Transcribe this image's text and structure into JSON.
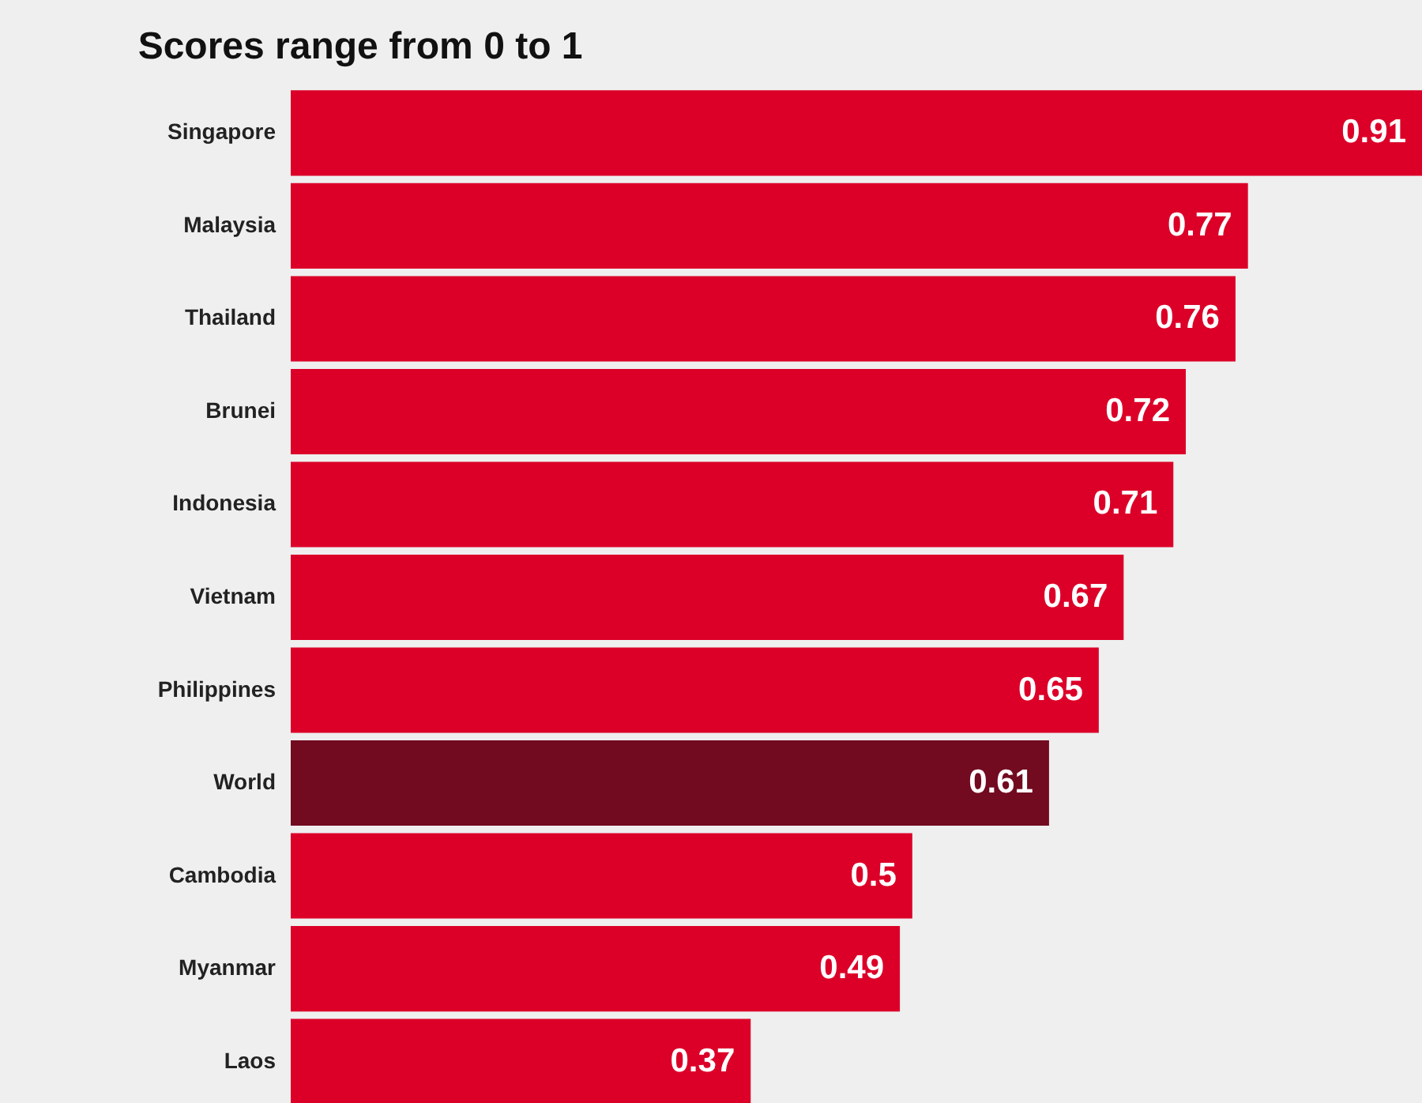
{
  "chart_data": {
    "type": "bar",
    "orientation": "horizontal",
    "title": "Scores range from 0 to 1",
    "categories": [
      "Singapore",
      "Malaysia",
      "Thailand",
      "Brunei",
      "Indonesia",
      "Vietnam",
      "Philippines",
      "World",
      "Cambodia",
      "Myanmar",
      "Laos"
    ],
    "values": [
      0.91,
      0.77,
      0.76,
      0.72,
      0.71,
      0.67,
      0.65,
      0.61,
      0.5,
      0.49,
      0.37
    ],
    "colors": [
      "#dc0029",
      "#dc0029",
      "#dc0029",
      "#dc0029",
      "#dc0029",
      "#dc0029",
      "#dc0029",
      "#720a20",
      "#dc0029",
      "#dc0029",
      "#dc0029"
    ],
    "data_labels": true
  }
}
